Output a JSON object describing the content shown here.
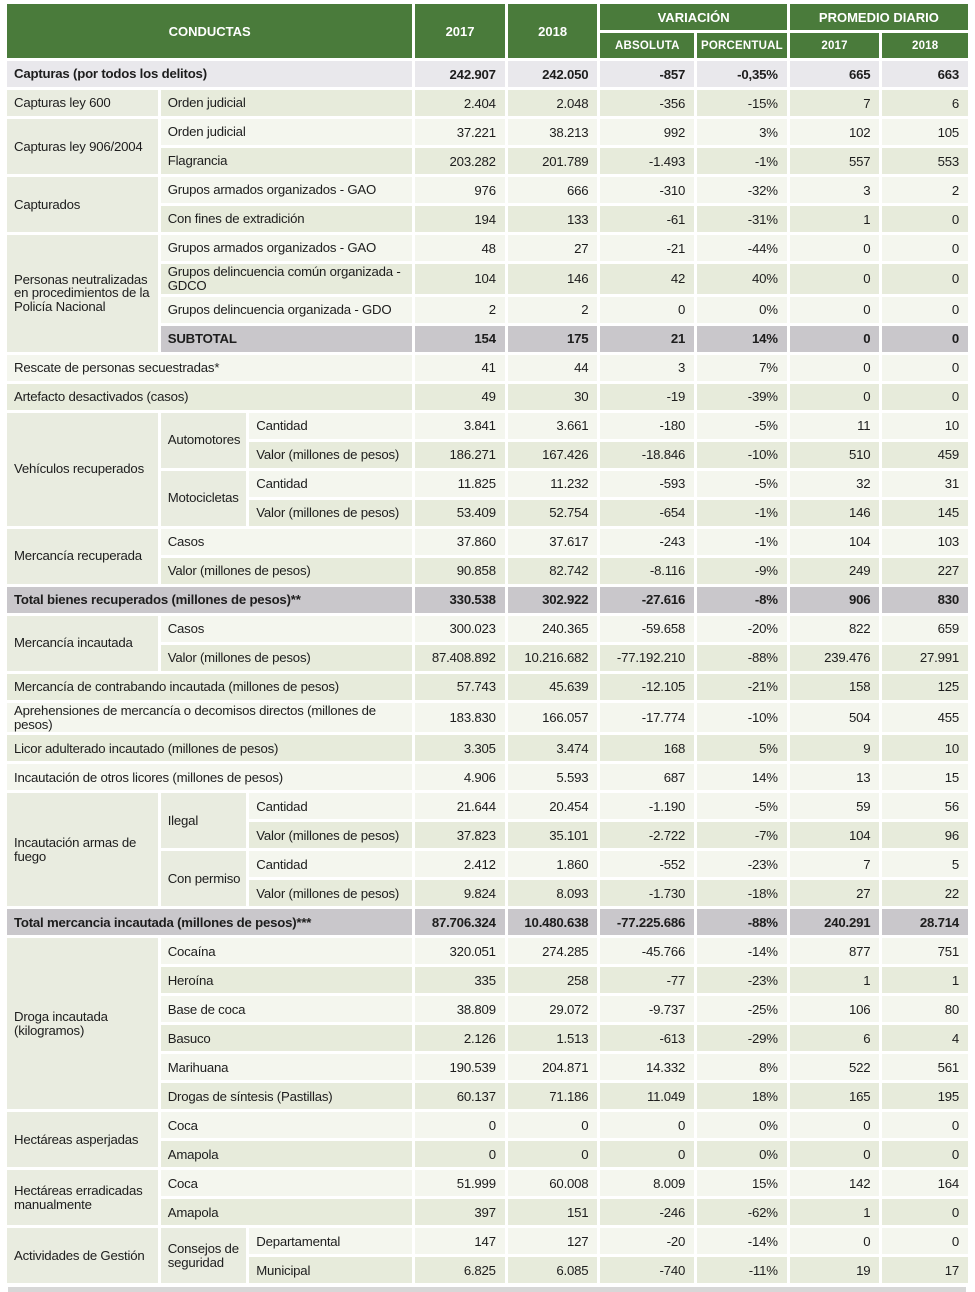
{
  "table": {
    "header": {
      "conductas": "CONDUCTAS",
      "col_2017": "2017",
      "col_2018": "2018",
      "variacion": "VARIACIÓN",
      "absoluta": "ABSOLUTA",
      "porcentual": "PORCENTUAL",
      "promedio_diario": "PROMEDIO DIARIO",
      "pd_2017": "2017",
      "pd_2018": "2018"
    },
    "colors": {
      "header_green": "#4a7b3b",
      "row_green": "#e7ebdb",
      "row_white": "#f4f6ee",
      "row_gray": "#c9c7cb",
      "row_top": "#e9e8ec",
      "span_cell": "#e9ece0",
      "gap_white": "#ffffff",
      "bottom_edge": "#d7d7d7"
    },
    "rows": [
      {
        "labels": [
          {
            "text": "Capturas (por todos los delitos)",
            "colspan": 3,
            "kind": "leaf"
          }
        ],
        "values": [
          "242.907",
          "242.050",
          "-857",
          "-0,35%",
          "665",
          "663"
        ],
        "shade": "top",
        "bold": true
      },
      {
        "labels": [
          {
            "text": "Capturas ley 600",
            "kind": "span"
          },
          {
            "text": "Orden judicial",
            "colspan": 2,
            "kind": "leaf"
          }
        ],
        "values": [
          "2.404",
          "2.048",
          "-356",
          "-15%",
          "7",
          "6"
        ],
        "shade": "green"
      },
      {
        "labels": [
          {
            "text": "Capturas ley 906/2004",
            "kind": "span",
            "rowspan": 2
          },
          {
            "text": "Orden judicial",
            "colspan": 2,
            "kind": "leaf"
          }
        ],
        "values": [
          "37.221",
          "38.213",
          "992",
          "3%",
          "102",
          "105"
        ],
        "shade": "white"
      },
      {
        "labels": [
          {
            "text": "Flagrancia",
            "colspan": 2,
            "kind": "leaf"
          }
        ],
        "values": [
          "203.282",
          "201.789",
          "-1.493",
          "-1%",
          "557",
          "553"
        ],
        "shade": "green"
      },
      {
        "labels": [
          {
            "text": "Capturados",
            "kind": "span",
            "rowspan": 2
          },
          {
            "text": "Grupos armados organizados - GAO",
            "colspan": 2,
            "kind": "leaf"
          }
        ],
        "values": [
          "976",
          "666",
          "-310",
          "-32%",
          "3",
          "2"
        ],
        "shade": "white"
      },
      {
        "labels": [
          {
            "text": "Con fines de extradición",
            "colspan": 2,
            "kind": "leaf"
          }
        ],
        "values": [
          "194",
          "133",
          "-61",
          "-31%",
          "1",
          "0"
        ],
        "shade": "green"
      },
      {
        "labels": [
          {
            "text": "Personas neutralizadas en procedimientos de la Policía Nacional",
            "kind": "span",
            "rowspan": 4
          },
          {
            "text": "Grupos armados organizados - GAO",
            "colspan": 2,
            "kind": "leaf"
          }
        ],
        "values": [
          "48",
          "27",
          "-21",
          "-44%",
          "0",
          "0"
        ],
        "shade": "white"
      },
      {
        "labels": [
          {
            "text": "Grupos delincuencia común organizada - GDCO",
            "colspan": 2,
            "kind": "leaf"
          }
        ],
        "values": [
          "104",
          "146",
          "42",
          "40%",
          "0",
          "0"
        ],
        "shade": "green"
      },
      {
        "labels": [
          {
            "text": "Grupos delincuencia organizada - GDO",
            "colspan": 2,
            "kind": "leaf"
          }
        ],
        "values": [
          "2",
          "2",
          "0",
          "0%",
          "0",
          "0"
        ],
        "shade": "white"
      },
      {
        "labels": [
          {
            "text": "SUBTOTAL",
            "colspan": 2,
            "kind": "leaf"
          }
        ],
        "values": [
          "154",
          "175",
          "21",
          "14%",
          "0",
          "0"
        ],
        "shade": "gray",
        "bold": true
      },
      {
        "labels": [
          {
            "text": "Rescate de personas secuestradas*",
            "colspan": 3,
            "kind": "leaf"
          }
        ],
        "values": [
          "41",
          "44",
          "3",
          "7%",
          "0",
          "0"
        ],
        "shade": "white"
      },
      {
        "labels": [
          {
            "text": "Artefacto desactivados (casos)",
            "colspan": 3,
            "kind": "leaf"
          }
        ],
        "values": [
          "49",
          "30",
          "-19",
          "-39%",
          "0",
          "0"
        ],
        "shade": "green"
      },
      {
        "labels": [
          {
            "text": "Vehículos recuperados",
            "kind": "span",
            "rowspan": 4
          },
          {
            "text": "Automotores",
            "kind": "span",
            "rowspan": 2
          },
          {
            "text": "Cantidad",
            "kind": "leaf"
          }
        ],
        "values": [
          "3.841",
          "3.661",
          "-180",
          "-5%",
          "11",
          "10"
        ],
        "shade": "white"
      },
      {
        "labels": [
          {
            "text": "Valor (millones de pesos)",
            "kind": "leaf"
          }
        ],
        "values": [
          "186.271",
          "167.426",
          "-18.846",
          "-10%",
          "510",
          "459"
        ],
        "shade": "green"
      },
      {
        "labels": [
          {
            "text": "Motocicletas",
            "kind": "span",
            "rowspan": 2
          },
          {
            "text": "Cantidad",
            "kind": "leaf"
          }
        ],
        "values": [
          "11.825",
          "11.232",
          "-593",
          "-5%",
          "32",
          "31"
        ],
        "shade": "white"
      },
      {
        "labels": [
          {
            "text": "Valor (millones de pesos)",
            "kind": "leaf"
          }
        ],
        "values": [
          "53.409",
          "52.754",
          "-654",
          "-1%",
          "146",
          "145"
        ],
        "shade": "green"
      },
      {
        "labels": [
          {
            "text": "Mercancía recuperada",
            "kind": "span",
            "rowspan": 2
          },
          {
            "text": "Casos",
            "colspan": 2,
            "kind": "leaf"
          }
        ],
        "values": [
          "37.860",
          "37.617",
          "-243",
          "-1%",
          "104",
          "103"
        ],
        "shade": "white"
      },
      {
        "labels": [
          {
            "text": "Valor (millones de pesos)",
            "colspan": 2,
            "kind": "leaf"
          }
        ],
        "values": [
          "90.858",
          "82.742",
          "-8.116",
          "-9%",
          "249",
          "227"
        ],
        "shade": "green"
      },
      {
        "labels": [
          {
            "text": "Total bienes recuperados (millones de pesos)**",
            "colspan": 3,
            "kind": "leaf"
          }
        ],
        "values": [
          "330.538",
          "302.922",
          "-27.616",
          "-8%",
          "906",
          "830"
        ],
        "shade": "gray",
        "bold": true
      },
      {
        "labels": [
          {
            "text": "Mercancía incautada",
            "kind": "span",
            "rowspan": 2
          },
          {
            "text": "Casos",
            "colspan": 2,
            "kind": "leaf"
          }
        ],
        "values": [
          "300.023",
          "240.365",
          "-59.658",
          "-20%",
          "822",
          "659"
        ],
        "shade": "white"
      },
      {
        "labels": [
          {
            "text": "Valor (millones de pesos)",
            "colspan": 2,
            "kind": "leaf"
          }
        ],
        "values": [
          "87.408.892",
          "10.216.682",
          "-77.192.210",
          "-88%",
          "239.476",
          "27.991"
        ],
        "shade": "green"
      },
      {
        "labels": [
          {
            "text": "Mercancía de contrabando incautada (millones de pesos)",
            "colspan": 3,
            "kind": "leaf"
          }
        ],
        "values": [
          "57.743",
          "45.639",
          "-12.105",
          "-21%",
          "158",
          "125"
        ],
        "shade": "green"
      },
      {
        "labels": [
          {
            "text": "Aprehensiones de mercancía o decomisos directos (millones de pesos)",
            "colspan": 3,
            "kind": "leaf"
          }
        ],
        "values": [
          "183.830",
          "166.057",
          "-17.774",
          "-10%",
          "504",
          "455"
        ],
        "shade": "white"
      },
      {
        "labels": [
          {
            "text": "Licor adulterado incautado (millones de pesos)",
            "colspan": 3,
            "kind": "leaf"
          }
        ],
        "values": [
          "3.305",
          "3.474",
          "168",
          "5%",
          "9",
          "10"
        ],
        "shade": "green"
      },
      {
        "labels": [
          {
            "text": "Incautación de otros licores (millones de pesos)",
            "colspan": 3,
            "kind": "leaf"
          }
        ],
        "values": [
          "4.906",
          "5.593",
          "687",
          "14%",
          "13",
          "15"
        ],
        "shade": "white"
      },
      {
        "labels": [
          {
            "text": "Incautación armas de fuego",
            "kind": "span",
            "rowspan": 4
          },
          {
            "text": "Ilegal",
            "kind": "span",
            "rowspan": 2
          },
          {
            "text": "Cantidad",
            "kind": "leaf"
          }
        ],
        "values": [
          "21.644",
          "20.454",
          "-1.190",
          "-5%",
          "59",
          "56"
        ],
        "shade": "white"
      },
      {
        "labels": [
          {
            "text": "Valor (millones de pesos)",
            "kind": "leaf"
          }
        ],
        "values": [
          "37.823",
          "35.101",
          "-2.722",
          "-7%",
          "104",
          "96"
        ],
        "shade": "green"
      },
      {
        "labels": [
          {
            "text": "Con permiso",
            "kind": "span",
            "rowspan": 2
          },
          {
            "text": "Cantidad",
            "kind": "leaf"
          }
        ],
        "values": [
          "2.412",
          "1.860",
          "-552",
          "-23%",
          "7",
          "5"
        ],
        "shade": "white"
      },
      {
        "labels": [
          {
            "text": "Valor (millones de pesos)",
            "kind": "leaf"
          }
        ],
        "values": [
          "9.824",
          "8.093",
          "-1.730",
          "-18%",
          "27",
          "22"
        ],
        "shade": "green"
      },
      {
        "labels": [
          {
            "text": "Total mercancia incautada (millones de pesos)***",
            "colspan": 3,
            "kind": "leaf"
          }
        ],
        "values": [
          "87.706.324",
          "10.480.638",
          "-77.225.686",
          "-88%",
          "240.291",
          "28.714"
        ],
        "shade": "gray",
        "bold": true
      },
      {
        "labels": [
          {
            "text": "Droga incautada (kilogramos)",
            "kind": "span",
            "rowspan": 6
          },
          {
            "text": "Cocaína",
            "colspan": 2,
            "kind": "leaf"
          }
        ],
        "values": [
          "320.051",
          "274.285",
          "-45.766",
          "-14%",
          "877",
          "751"
        ],
        "shade": "white"
      },
      {
        "labels": [
          {
            "text": "Heroína",
            "colspan": 2,
            "kind": "leaf"
          }
        ],
        "values": [
          "335",
          "258",
          "-77",
          "-23%",
          "1",
          "1"
        ],
        "shade": "green"
      },
      {
        "labels": [
          {
            "text": "Base de coca",
            "colspan": 2,
            "kind": "leaf"
          }
        ],
        "values": [
          "38.809",
          "29.072",
          "-9.737",
          "-25%",
          "106",
          "80"
        ],
        "shade": "white"
      },
      {
        "labels": [
          {
            "text": "Basuco",
            "colspan": 2,
            "kind": "leaf"
          }
        ],
        "values": [
          "2.126",
          "1.513",
          "-613",
          "-29%",
          "6",
          "4"
        ],
        "shade": "green"
      },
      {
        "labels": [
          {
            "text": "Marihuana",
            "colspan": 2,
            "kind": "leaf"
          }
        ],
        "values": [
          "190.539",
          "204.871",
          "14.332",
          "8%",
          "522",
          "561"
        ],
        "shade": "white"
      },
      {
        "labels": [
          {
            "text": "Drogas de síntesis (Pastillas)",
            "colspan": 2,
            "kind": "leaf"
          }
        ],
        "values": [
          "60.137",
          "71.186",
          "11.049",
          "18%",
          "165",
          "195"
        ],
        "shade": "green"
      },
      {
        "labels": [
          {
            "text": "Hectáreas asperjadas",
            "kind": "span",
            "rowspan": 2
          },
          {
            "text": "Coca",
            "colspan": 2,
            "kind": "leaf"
          }
        ],
        "values": [
          "0",
          "0",
          "0",
          "0%",
          "0",
          "0"
        ],
        "shade": "white"
      },
      {
        "labels": [
          {
            "text": "Amapola",
            "colspan": 2,
            "kind": "leaf"
          }
        ],
        "values": [
          "0",
          "0",
          "0",
          "0%",
          "0",
          "0"
        ],
        "shade": "green"
      },
      {
        "labels": [
          {
            "text": "Hectáreas erradicadas manualmente",
            "kind": "span",
            "rowspan": 2
          },
          {
            "text": "Coca",
            "colspan": 2,
            "kind": "leaf"
          }
        ],
        "values": [
          "51.999",
          "60.008",
          "8.009",
          "15%",
          "142",
          "164"
        ],
        "shade": "white"
      },
      {
        "labels": [
          {
            "text": "Amapola",
            "colspan": 2,
            "kind": "leaf"
          }
        ],
        "values": [
          "397",
          "151",
          "-246",
          "-62%",
          "1",
          "0"
        ],
        "shade": "green"
      },
      {
        "labels": [
          {
            "text": "Actividades de Gestión",
            "kind": "span",
            "rowspan": 2
          },
          {
            "text": "Consejos de seguridad",
            "kind": "span",
            "rowspan": 2
          },
          {
            "text": "Departamental",
            "kind": "leaf"
          }
        ],
        "values": [
          "147",
          "127",
          "-20",
          "-14%",
          "0",
          "0"
        ],
        "shade": "white"
      },
      {
        "labels": [
          {
            "text": "Municipal",
            "kind": "leaf"
          }
        ],
        "values": [
          "6.825",
          "6.085",
          "-740",
          "-11%",
          "19",
          "17"
        ],
        "shade": "green"
      }
    ]
  }
}
